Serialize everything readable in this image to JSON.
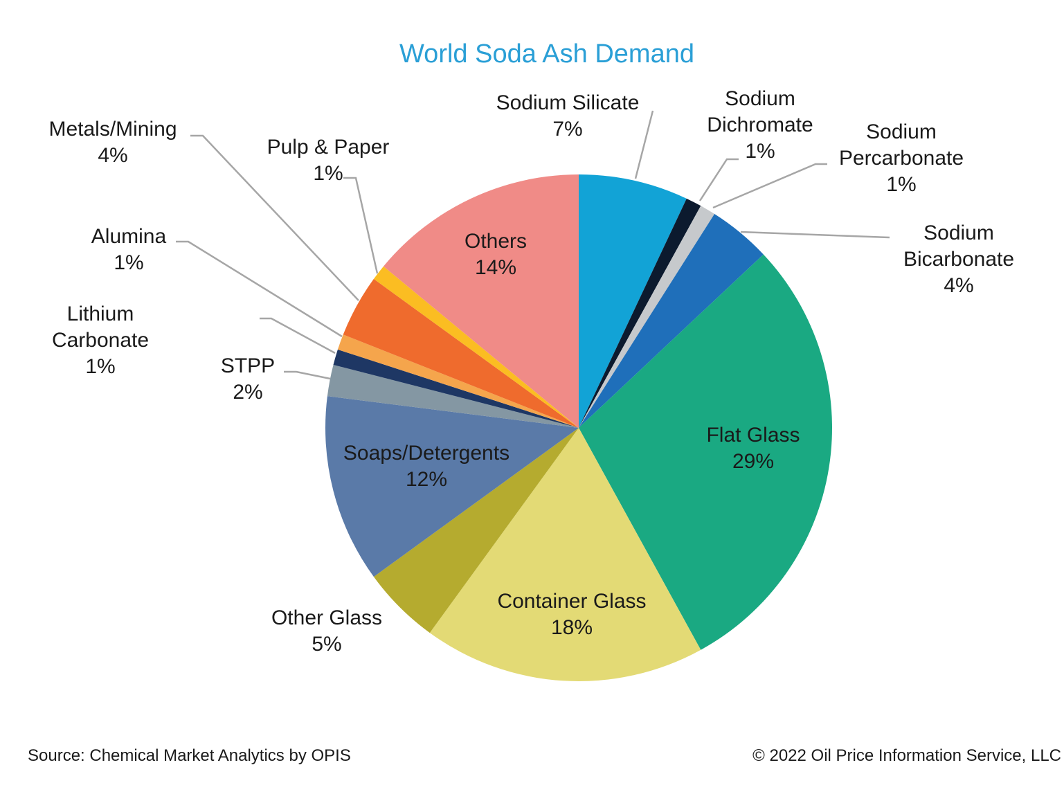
{
  "chart_data": {
    "type": "pie",
    "title": "World Soda Ash Demand",
    "title_color": "#2a9fd6",
    "slices": [
      {
        "label": "Sodium Silicate",
        "value": 7,
        "pct_label": "7%",
        "color": "#12a3d6"
      },
      {
        "label": "Sodium Dichromate",
        "value": 1,
        "pct_label": "1%",
        "color": "#0c1a2e"
      },
      {
        "label": "Sodium Percarbonate",
        "value": 1,
        "pct_label": "1%",
        "color": "#c6c9cc"
      },
      {
        "label": "Sodium Bicarbonate",
        "value": 4,
        "pct_label": "4%",
        "color": "#1f6fba"
      },
      {
        "label": "Flat Glass",
        "value": 29,
        "pct_label": "29%",
        "color": "#1aa982"
      },
      {
        "label": "Container Glass",
        "value": 18,
        "pct_label": "18%",
        "color": "#e3da75"
      },
      {
        "label": "Other Glass",
        "value": 5,
        "pct_label": "5%",
        "color": "#b5ab2f"
      },
      {
        "label": "Soaps/Detergents",
        "value": 12,
        "pct_label": "12%",
        "color": "#5a7aa8"
      },
      {
        "label": "STPP",
        "value": 2,
        "pct_label": "2%",
        "color": "#8497a3"
      },
      {
        "label": "Lithium Carbonate",
        "value": 1,
        "pct_label": "1%",
        "color": "#1e3764"
      },
      {
        "label": "Alumina",
        "value": 1,
        "pct_label": "1%",
        "color": "#f5a54c"
      },
      {
        "label": "Metals/Mining",
        "value": 4,
        "pct_label": "4%",
        "color": "#ef6b2d"
      },
      {
        "label": "Pulp & Paper",
        "value": 1,
        "pct_label": "1%",
        "color": "#fbbd22"
      },
      {
        "label": "Others",
        "value": 14,
        "pct_label": "14%",
        "color": "#f08b87"
      }
    ]
  },
  "footer": {
    "source": "Source: Chemical Market Analytics by OPIS",
    "copyright": "© 2022 Oil Price Information Service, LLC"
  }
}
